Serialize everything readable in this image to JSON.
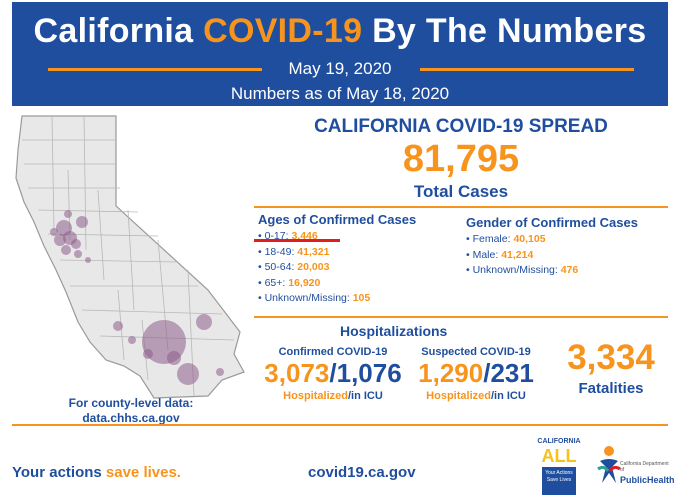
{
  "header": {
    "title_part1": "California ",
    "title_highlight": "COVID-19",
    "title_part2": " By The Numbers",
    "date": "May 19, 2020",
    "as_of": "Numbers as of May 18, 2020"
  },
  "map": {
    "county_label_line1": "For county-level data:",
    "county_label_line2": "data.chhs.ca.gov"
  },
  "spread": {
    "title": "CALIFORNIA COVID-19 SPREAD",
    "total": "81,795",
    "total_label": "Total Cases"
  },
  "ages": {
    "title": "Ages of Confirmed Cases",
    "items": [
      {
        "label": "• 0-17: ",
        "value": "3,446"
      },
      {
        "label": "• 18-49: ",
        "value": "41,321"
      },
      {
        "label": "• 50-64: ",
        "value": "20,003"
      },
      {
        "label": "• 65+: ",
        "value": "16,920"
      },
      {
        "label": "• Unknown/Missing: ",
        "value": "105"
      }
    ]
  },
  "gender": {
    "title": "Gender of Confirmed Cases",
    "items": [
      {
        "label": "• Female: ",
        "value": "40,105"
      },
      {
        "label": "• Male: ",
        "value": "41,214"
      },
      {
        "label": "• Unknown/Missing: ",
        "value": "476"
      }
    ]
  },
  "hospitalizations": {
    "title": "Hospitalizations",
    "confirmed_label": "Confirmed COVID-19",
    "confirmed_hosp": "3,073",
    "confirmed_icu": "1,076",
    "suspected_label": "Suspected COVID-19",
    "suspected_hosp": "1,290",
    "suspected_icu": "231",
    "slash": "/",
    "hosp_word": "Hospitalized",
    "icu_word": "/in ICU"
  },
  "fatalities": {
    "value": "3,334",
    "label": "Fatalities"
  },
  "footer": {
    "slogan_part1": "Your actions ",
    "slogan_highlight": "save lives.",
    "url": "covid19.ca.gov",
    "ca_logo_top": "CALIFORNIA",
    "ca_logo_all": "ALL",
    "ca_logo_box": "Your Actions Save Lives",
    "cdph_small": "California Department of",
    "cdph_big": "PublicHealth"
  },
  "colors": {
    "brand_blue": "#1f4e9e",
    "accent_orange": "#f7941d",
    "bubble_purple": "#8e5c8a",
    "annotation_red": "#e01e1e"
  }
}
